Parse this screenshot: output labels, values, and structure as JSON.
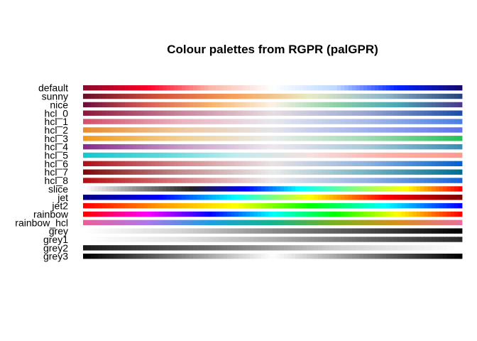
{
  "chart_data": {
    "type": "heatmap",
    "title": "Colour palettes from RGPR (palGPR)",
    "xlabel": "",
    "ylabel": "",
    "palettes": [
      {
        "name": "default",
        "stops": [
          "#8b0a2b",
          "#ff0026",
          "#f8b6a8",
          "#ffffff",
          "#bfd9ff",
          "#0022ff",
          "#150a6e"
        ]
      },
      {
        "name": "sunny",
        "stops": [
          "#6b0f2a",
          "#d4543c",
          "#f7a15a",
          "#e8ebc7",
          "#8fb7c8",
          "#27457a"
        ]
      },
      {
        "name": "nice",
        "stops": [
          "#6e0f3b",
          "#d85f57",
          "#f7b26a",
          "#fbf2e6",
          "#8fd1a6",
          "#4aa7b6",
          "#4a3b8c"
        ]
      },
      {
        "name": "hcl_0",
        "stops": [
          "#8b1a3c",
          "#c7849a",
          "#e6dde0",
          "#9aa5d0",
          "#1f4fa6"
        ]
      },
      {
        "name": "hcl_1",
        "stops": [
          "#d2506b",
          "#ebb1be",
          "#e7e7ee",
          "#a9bbe8",
          "#4b7fe6"
        ]
      },
      {
        "name": "hcl_2",
        "stops": [
          "#e98d2c",
          "#f0c79d",
          "#e4e4ea",
          "#9fb0f0",
          "#5f74ee"
        ]
      },
      {
        "name": "hcl_3",
        "stops": [
          "#f29a1b",
          "#f3ce8f",
          "#e9eceb",
          "#9fdcb3",
          "#27c25a"
        ]
      },
      {
        "name": "hcl_4",
        "stops": [
          "#8a2c8e",
          "#c59ac7",
          "#eee7ee",
          "#a8cadb",
          "#3a8fb5"
        ]
      },
      {
        "name": "hcl_5",
        "stops": [
          "#12c9cf",
          "#5bd8da",
          "#bfecee",
          "#f6e0df",
          "#ffb0a8",
          "#ff9a8f"
        ]
      },
      {
        "name": "hcl_6",
        "stops": [
          "#b0101a",
          "#d4878c",
          "#e9e2e3",
          "#8fb3df",
          "#0063d1"
        ]
      },
      {
        "name": "hcl_7",
        "stops": [
          "#7d0a0a",
          "#c08b8b",
          "#eaeaea",
          "#77b3c2",
          "#006e93"
        ]
      },
      {
        "name": "hcl_8",
        "stops": [
          "#b40f12",
          "#d87d80",
          "#ebe9ea",
          "#95b2e3",
          "#1765d8"
        ]
      },
      {
        "name": "slice",
        "stops": [
          "#ffffff",
          "#8a8a8a",
          "#202020",
          "#0000ff",
          "#00ffff",
          "#7fff7f",
          "#ffff00",
          "#ff0000"
        ]
      },
      {
        "name": "jet",
        "stops": [
          "#000080",
          "#0000ff",
          "#00ffff",
          "#ffff00",
          "#ff0000",
          "#800000"
        ]
      },
      {
        "name": "jet2",
        "stops": [
          "#ff0000",
          "#ff9900",
          "#ffff00",
          "#00ff00",
          "#00ffff",
          "#0000ff"
        ]
      },
      {
        "name": "rainbow",
        "stops": [
          "#ff0000",
          "#ff00ff",
          "#0000ff",
          "#00ffff",
          "#00ff00",
          "#ffff00",
          "#ff0000"
        ]
      },
      {
        "name": "rainbow_hcl",
        "stops": [
          "#e8609a",
          "#ac78e8",
          "#1e9ee0",
          "#14b48c",
          "#7ab21e",
          "#d8901e",
          "#e8709a"
        ]
      },
      {
        "name": "grey",
        "stops": [
          "#ffffff",
          "#d6d6d6",
          "#8a8a8a",
          "#4a4a4a",
          "#000000"
        ]
      },
      {
        "name": "grey1",
        "stops": [
          "#ffffff",
          "#e4e4e4",
          "#b0b0b0",
          "#6a6a6a",
          "#2a2a2a"
        ]
      },
      {
        "name": "grey2",
        "stops": [
          "#1a1a1a",
          "#6a6a6a",
          "#cfcfcf",
          "#ffffff"
        ]
      },
      {
        "name": "grey3",
        "stops": [
          "#000000",
          "#7f7f7f",
          "#ffffff",
          "#7f7f7f",
          "#000000"
        ]
      }
    ]
  }
}
